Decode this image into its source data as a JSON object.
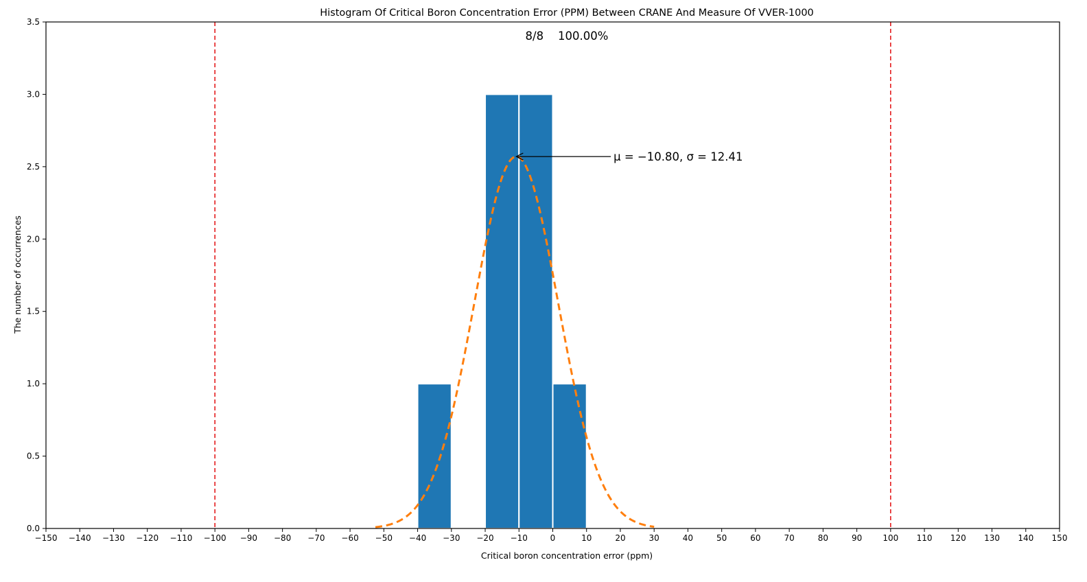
{
  "chart_data": {
    "type": "bar",
    "title": "Histogram Of Critical Boron Concentration Error (PPM) Between CRANE And Measure Of VVER-1000",
    "xlabel": "Critical boron concentration error (ppm)",
    "ylabel": "The number of occurrences",
    "xlim": [
      -150,
      150
    ],
    "ylim": [
      0,
      3.5
    ],
    "x_ticks": [
      -150,
      -140,
      -130,
      -120,
      -110,
      -100,
      -90,
      -80,
      -70,
      -60,
      -50,
      -40,
      -30,
      -20,
      -10,
      0,
      10,
      20,
      30,
      40,
      50,
      60,
      70,
      80,
      90,
      100,
      110,
      120,
      130,
      140,
      150
    ],
    "y_ticks": [
      0.0,
      0.5,
      1.0,
      1.5,
      2.0,
      2.5,
      3.0,
      3.5
    ],
    "grid": false,
    "bins": [
      {
        "x0": -40,
        "x1": -30,
        "count": 1
      },
      {
        "x0": -20,
        "x1": -10,
        "count": 3
      },
      {
        "x0": -10,
        "x1": 0,
        "count": 3
      },
      {
        "x0": 0,
        "x1": 10,
        "count": 1
      }
    ],
    "bar_color": "#1f77b4",
    "normal_fit": {
      "mu": -10.8,
      "sigma": 12.41,
      "peak": 2.57,
      "x_range": [
        -52.5,
        30
      ],
      "color": "#ff7f0e",
      "style": "dashed"
    },
    "limit_lines": {
      "x": [
        -100,
        100
      ],
      "color": "#e41a1c",
      "style": "dashed"
    },
    "annotations": {
      "summary": "8/8    100.00%",
      "fit_label": "μ = −10.80, σ = 12.41",
      "arrow_to": {
        "x": -10.8,
        "y": 2.57
      },
      "label_at": {
        "x": 18,
        "y": 2.57
      }
    }
  }
}
